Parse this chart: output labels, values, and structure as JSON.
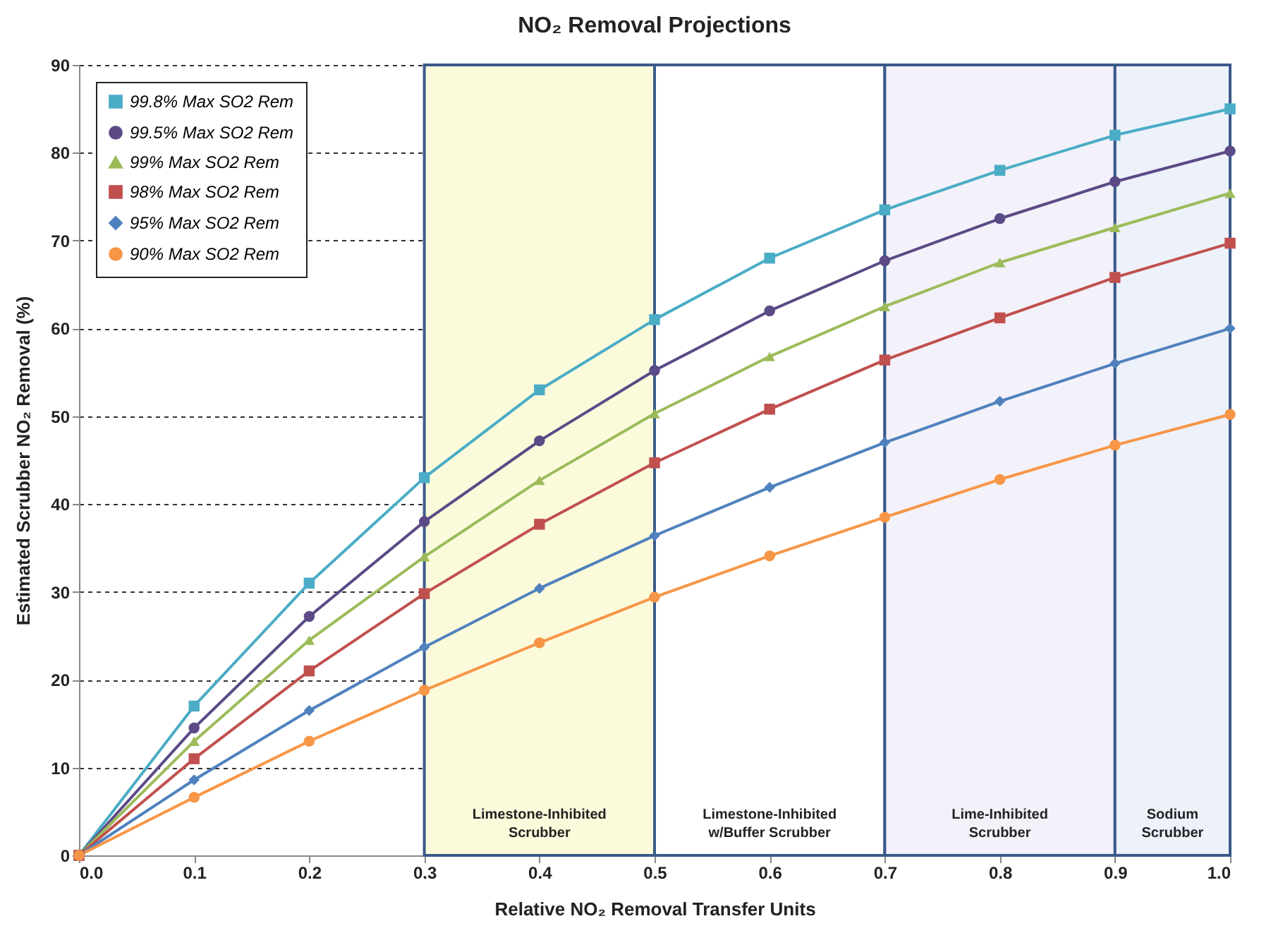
{
  "chart_data": {
    "type": "line",
    "title": "NO₂ Removal Projections",
    "xlabel": "Relative NO₂ Removal Transfer Units",
    "ylabel": "Estimated Scrubber NO₂ Removal (%)",
    "x": [
      0,
      0.1,
      0.2,
      0.3,
      0.4,
      0.5,
      0.6,
      0.7,
      0.8,
      0.9,
      1.0
    ],
    "series": [
      {
        "name": "99.8% Max SO2 Rem",
        "color": "#4bacc6",
        "marker": "square",
        "values": [
          0,
          17,
          31,
          43,
          53,
          61,
          68,
          73.5,
          78,
          82,
          85
        ]
      },
      {
        "name": "99.5% Max SO2 Rem",
        "color": "#5b4a86",
        "marker": "circle",
        "values": [
          0,
          14.5,
          27.2,
          38,
          47.2,
          55.2,
          62,
          67.7,
          72.5,
          76.7,
          80.2
        ]
      },
      {
        "name": "99% Max SO2 Rem",
        "color": "#9bbb59",
        "marker": "triangle",
        "values": [
          0,
          13,
          24.5,
          34,
          42.7,
          50.3,
          56.8,
          62.5,
          67.5,
          71.5,
          75.4
        ]
      },
      {
        "name": "98% Max SO2 Rem",
        "color": "#c0504d",
        "marker": "square",
        "values": [
          0,
          11,
          21,
          29.8,
          37.7,
          44.7,
          50.8,
          56.4,
          61.2,
          65.8,
          69.7
        ]
      },
      {
        "name": "95% Max SO2 Rem",
        "color": "#4f81bd",
        "marker": "diamond",
        "values": [
          0,
          8.6,
          16.5,
          23.7,
          30.4,
          36.4,
          41.9,
          47,
          51.7,
          56,
          60
        ]
      },
      {
        "name": "90% Max SO2 Rem",
        "color": "#f79646",
        "marker": "circle",
        "values": [
          0,
          6.6,
          13,
          18.8,
          24.2,
          29.4,
          34.1,
          38.5,
          42.8,
          46.7,
          50.2
        ]
      }
    ],
    "xlim": [
      0,
      1.0
    ],
    "xticks": [
      {
        "value": 0,
        "label": "0.0"
      },
      0.1,
      0.2,
      0.3,
      0.4,
      0.5,
      0.6,
      0.7,
      0.8,
      0.9,
      {
        "value": 1.0,
        "label": "1.0"
      }
    ],
    "ylim": [
      0,
      90
    ],
    "yticks": [
      0,
      10,
      20,
      30,
      40,
      50,
      60,
      70,
      80,
      90
    ],
    "grid": "y",
    "legend": "top left",
    "line_style": "solid",
    "bands": [
      {
        "axis": "x",
        "from": 0.3,
        "to": 0.5,
        "label": "Limestone-Inhibited Scrubber",
        "color": "#fbfbdc"
      },
      {
        "axis": "x",
        "from": 0.5,
        "to": 0.7,
        "label": "Limestone-Inhibited w/Buffer Scrubber",
        "color": "#ffffff"
      },
      {
        "axis": "x",
        "from": 0.7,
        "to": 0.9,
        "label": "Lime-Inhibited Scrubber",
        "color": "#f3f1f9"
      },
      {
        "axis": "x",
        "from": 0.9,
        "to": 1.0,
        "label": "Sodium Scrubber",
        "color": "#edf1fa"
      }
    ]
  }
}
